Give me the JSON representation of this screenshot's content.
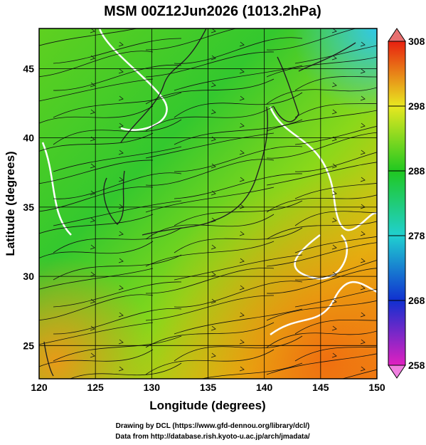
{
  "title": "MSM 00Z12Jun2026 (1013.2hPa)",
  "x_axis": {
    "label": "Longitude (degrees)",
    "lim": [
      120,
      150
    ],
    "ticks": [
      120,
      125,
      130,
      135,
      140,
      145,
      150
    ]
  },
  "y_axis": {
    "label": "Latitude  (degrees)",
    "lim": [
      22.6,
      47.9
    ],
    "ticks": [
      25,
      30,
      35,
      40,
      45
    ]
  },
  "colorbar": {
    "ticks": [
      258,
      268,
      278,
      288,
      298,
      308
    ]
  },
  "credits": [
    "Drawing by DCL (https://www.gfd-dennou.org/library/dcl/)",
    "Data from http://database.rish.kyoto-u.ac.jp/arch/jmadata/"
  ]
}
